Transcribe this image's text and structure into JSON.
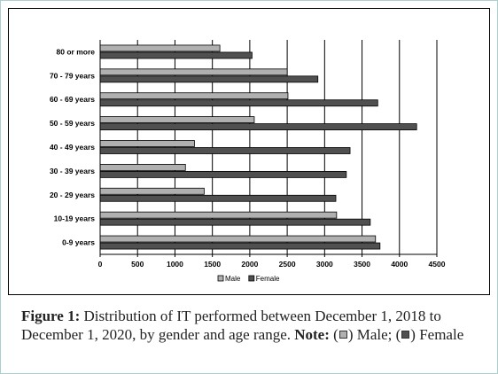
{
  "chart_data": {
    "type": "bar",
    "orientation": "horizontal",
    "categories": [
      "80 or more",
      "70 - 79 years",
      "60 - 69 years",
      "50 - 59 years",
      "40 - 49 years",
      "30 - 39 years",
      "20 - 29 years",
      "10-19 years",
      "0-9 years"
    ],
    "series": [
      {
        "name": "Male",
        "color": "#b0b0b0",
        "values": [
          1600,
          2500,
          2510,
          2060,
          1260,
          1140,
          1390,
          3160,
          3680
        ]
      },
      {
        "name": "Female",
        "color": "#505050",
        "values": [
          2030,
          2910,
          3710,
          4230,
          3340,
          3290,
          3150,
          3610,
          3740
        ]
      }
    ],
    "xlim": [
      0,
      4500
    ],
    "xticks": [
      "0",
      "500",
      "1000",
      "1500",
      "2000",
      "2500",
      "3000",
      "3500",
      "4000",
      "4500"
    ],
    "grid": true,
    "legend_position": "bottom-center",
    "xlabel": "",
    "ylabel": ""
  },
  "caption": {
    "label": "Figure 1:",
    "text_1": " Distribution of IT performed between December 1, 2018 to December 1, 2020, by gender and age range. ",
    "note_label": "Note:",
    "text_2": " (",
    "male_text": ") Male; (",
    "female_text": ") Female"
  }
}
